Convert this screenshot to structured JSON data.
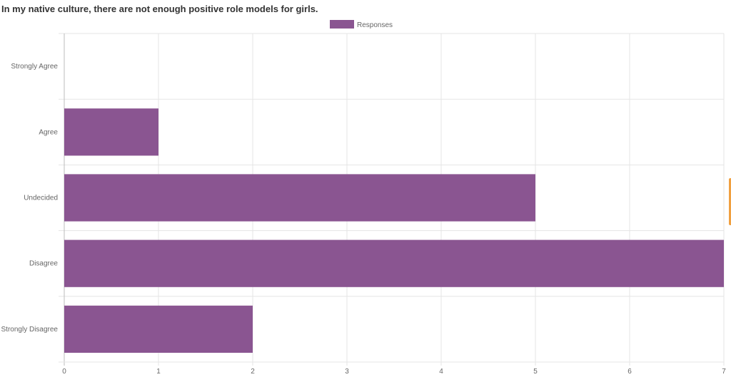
{
  "chart_data": {
    "type": "bar",
    "orientation": "horizontal",
    "title": "In my native culture, there are not enough positive role models for girls.",
    "categories": [
      "Strongly Agree",
      "Agree",
      "Undecided",
      "Disagree",
      "Strongly Disagree"
    ],
    "series": [
      {
        "name": "Responses",
        "values": [
          0,
          1,
          5,
          7,
          2
        ],
        "color": "#8a5591"
      }
    ],
    "xlim": [
      0,
      7
    ],
    "xticks": [
      "0",
      "1",
      "2",
      "3",
      "4",
      "5",
      "6",
      "7"
    ],
    "grid": true,
    "legend_position": "top-center"
  }
}
